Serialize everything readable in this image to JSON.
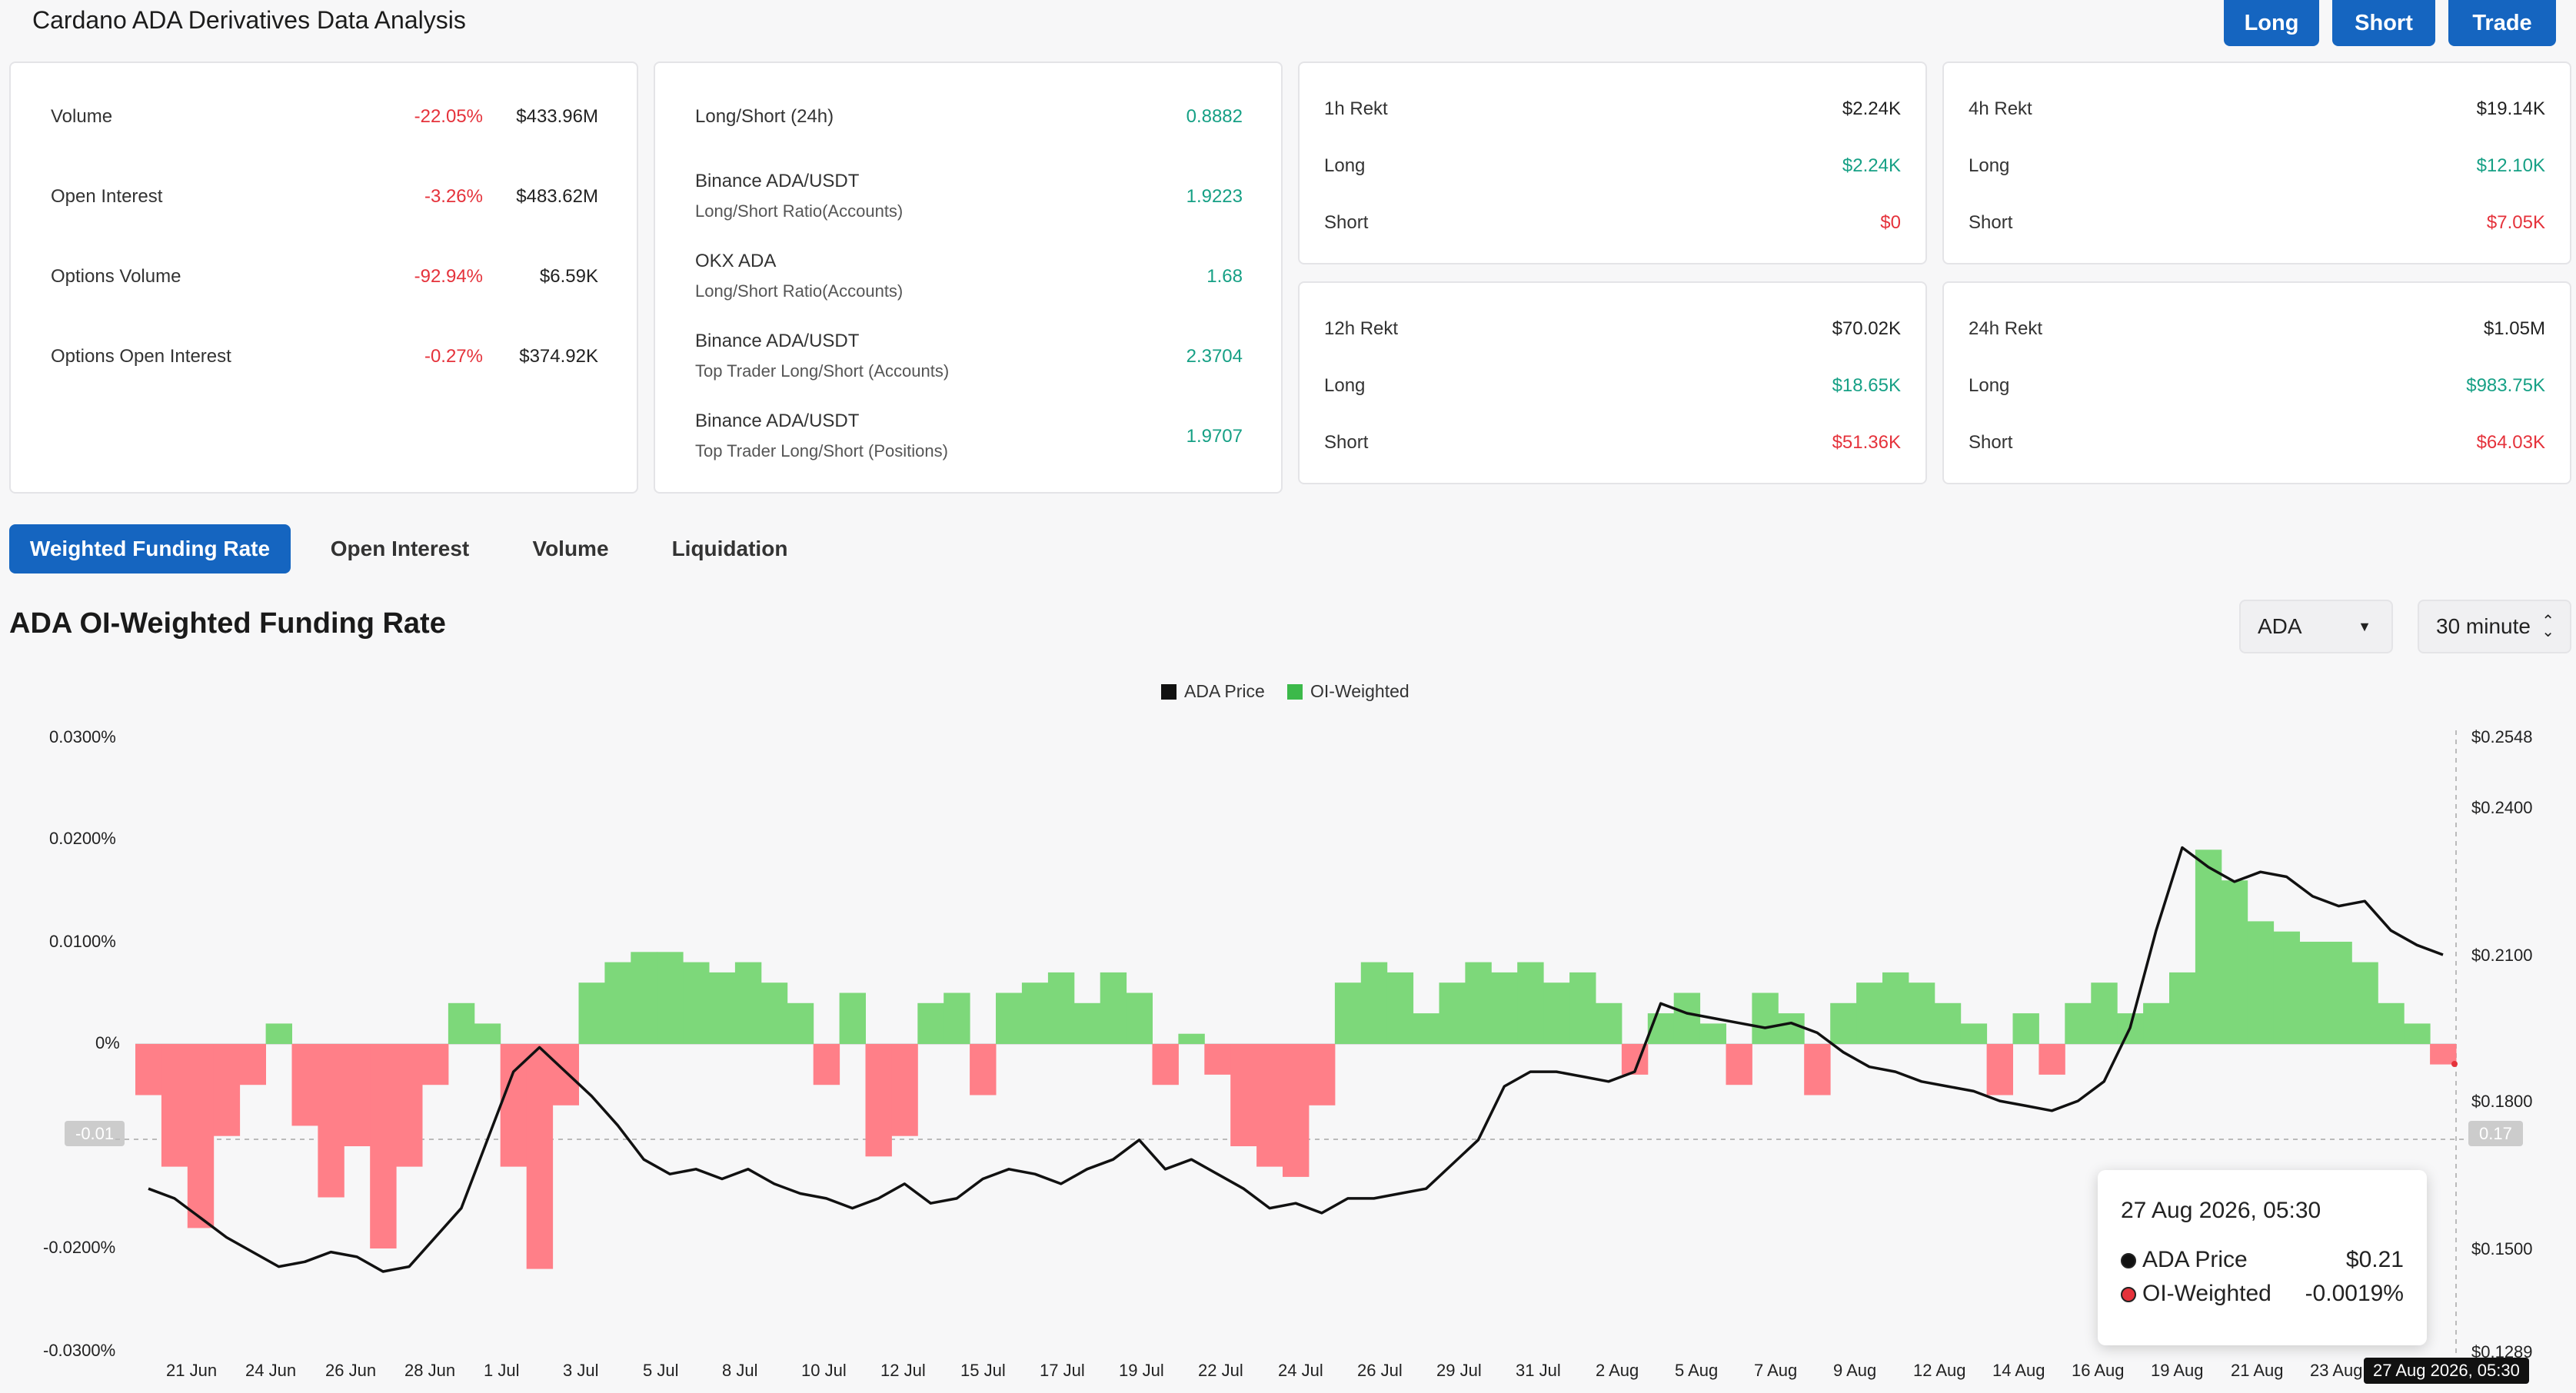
{
  "header": {
    "title": "Cardano ADA Derivatives Data Analysis",
    "buttons": {
      "long": "Long",
      "short": "Short",
      "trade": "Trade"
    }
  },
  "stats": [
    {
      "label": "Volume",
      "pct": "-22.05%",
      "value": "$433.96M"
    },
    {
      "label": "Open Interest",
      "pct": "-3.26%",
      "value": "$483.62M"
    },
    {
      "label": "Options Volume",
      "pct": "-92.94%",
      "value": "$6.59K"
    },
    {
      "label": "Options Open Interest",
      "pct": "-0.27%",
      "value": "$374.92K"
    }
  ],
  "ratios": [
    {
      "label": "Long/Short (24h)",
      "sub": "",
      "value": "0.8882"
    },
    {
      "label": "Binance ADA/USDT",
      "sub": "Long/Short Ratio(Accounts)",
      "value": "1.9223"
    },
    {
      "label": "OKX ADA",
      "sub": "Long/Short Ratio(Accounts)",
      "value": "1.68"
    },
    {
      "label": "Binance ADA/USDT",
      "sub": "Top Trader Long/Short (Accounts)",
      "value": "2.3704"
    },
    {
      "label": "Binance ADA/USDT",
      "sub": "Top Trader Long/Short (Positions)",
      "value": "1.9707"
    }
  ],
  "rekt": [
    {
      "title": "1h Rekt",
      "total": "$2.24K",
      "long_label": "Long",
      "long": "$2.24K",
      "short_label": "Short",
      "short": "$0"
    },
    {
      "title": "4h Rekt",
      "total": "$19.14K",
      "long_label": "Long",
      "long": "$12.10K",
      "short_label": "Short",
      "short": "$7.05K"
    },
    {
      "title": "12h Rekt",
      "total": "$70.02K",
      "long_label": "Long",
      "long": "$18.65K",
      "short_label": "Short",
      "short": "$51.36K"
    },
    {
      "title": "24h Rekt",
      "total": "$1.05M",
      "long_label": "Long",
      "long": "$983.75K",
      "short_label": "Short",
      "short": "$64.03K"
    }
  ],
  "tabs": [
    "Weighted Funding Rate",
    "Open Interest",
    "Volume",
    "Liquidation"
  ],
  "chart_title": "ADA OI-Weighted Funding Rate",
  "selects": {
    "coin": "ADA",
    "interval": "30 minute"
  },
  "tooltip": {
    "date": "27 Aug 2026, 05:30",
    "price_label": "ADA Price",
    "price": "$0.21",
    "oi_label": "OI-Weighted",
    "oi": "-0.0019%"
  },
  "crosshair": {
    "left_tag": "-0.01",
    "right_tag": "0.17",
    "x_tag": "27 Aug 2026, 05:30"
  },
  "colors": {
    "accent": "#1565c0",
    "positive": "#16a085",
    "negative": "#e5323b",
    "bar_pos": "#7dd87a",
    "bar_neg": "#ff7f88"
  },
  "chart_data": {
    "type": "bar+line",
    "legend": [
      "ADA Price",
      "OI-Weighted"
    ],
    "legend_position": "top-center",
    "y_left_ticks": [
      "0.0300%",
      "0.0200%",
      "0.0100%",
      "0%",
      "-0.01",
      "-0.0200%",
      "-0.0300%"
    ],
    "y_left_range": [
      -0.03,
      0.03
    ],
    "y_right_ticks": [
      "$0.2548",
      "$0.2400",
      "$0.2100",
      "$0.1800",
      "$0.1500",
      "$0.1289"
    ],
    "y_right_range": [
      0.1289,
      0.2548
    ],
    "x_ticks": [
      "21 Jun",
      "24 Jun",
      "26 Jun",
      "28 Jun",
      "1 Jul",
      "3 Jul",
      "5 Jul",
      "8 Jul",
      "10 Jul",
      "12 Jul",
      "15 Jul",
      "17 Jul",
      "19 Jul",
      "22 Jul",
      "24 Jul",
      "26 Jul",
      "29 Jul",
      "31 Jul",
      "2 Aug",
      "5 Aug",
      "7 Aug",
      "9 Aug",
      "12 Aug",
      "14 Aug",
      "16 Aug",
      "19 Aug",
      "21 Aug",
      "23 Aug"
    ],
    "series": [
      {
        "name": "OI-Weighted",
        "unit": "%",
        "values": [
          -0.005,
          -0.012,
          -0.018,
          -0.009,
          -0.004,
          0.002,
          -0.008,
          -0.015,
          -0.01,
          -0.02,
          -0.012,
          -0.004,
          0.004,
          0.002,
          -0.012,
          -0.022,
          -0.006,
          0.006,
          0.008,
          0.009,
          0.009,
          0.008,
          0.007,
          0.008,
          0.006,
          0.004,
          -0.004,
          0.005,
          -0.011,
          -0.009,
          0.004,
          0.005,
          -0.005,
          0.005,
          0.006,
          0.007,
          0.004,
          0.007,
          0.005,
          -0.004,
          0.001,
          -0.003,
          -0.01,
          -0.012,
          -0.013,
          -0.006,
          0.006,
          0.008,
          0.007,
          0.003,
          0.006,
          0.008,
          0.007,
          0.008,
          0.006,
          0.007,
          0.004,
          -0.003,
          0.003,
          0.005,
          0.002,
          -0.004,
          0.005,
          0.003,
          -0.005,
          0.004,
          0.006,
          0.007,
          0.006,
          0.004,
          0.002,
          -0.005,
          0.003,
          -0.003,
          0.004,
          0.006,
          0.003,
          0.004,
          0.007,
          0.019,
          0.016,
          0.012,
          0.011,
          0.01,
          0.01,
          0.008,
          0.004,
          0.002,
          -0.002
        ]
      },
      {
        "name": "ADA Price",
        "unit": "$",
        "values": [
          0.162,
          0.16,
          0.156,
          0.152,
          0.149,
          0.146,
          0.147,
          0.149,
          0.148,
          0.145,
          0.146,
          0.152,
          0.158,
          0.172,
          0.186,
          0.191,
          0.186,
          0.181,
          0.175,
          0.168,
          0.165,
          0.166,
          0.164,
          0.166,
          0.163,
          0.161,
          0.16,
          0.158,
          0.16,
          0.163,
          0.159,
          0.16,
          0.164,
          0.166,
          0.165,
          0.163,
          0.166,
          0.168,
          0.172,
          0.166,
          0.168,
          0.165,
          0.162,
          0.158,
          0.159,
          0.157,
          0.16,
          0.16,
          0.161,
          0.162,
          0.167,
          0.172,
          0.183,
          0.186,
          0.186,
          0.185,
          0.184,
          0.186,
          0.2,
          0.198,
          0.197,
          0.196,
          0.195,
          0.196,
          0.194,
          0.19,
          0.187,
          0.186,
          0.184,
          0.183,
          0.182,
          0.18,
          0.179,
          0.178,
          0.18,
          0.184,
          0.195,
          0.215,
          0.232,
          0.228,
          0.225,
          0.227,
          0.226,
          0.222,
          0.22,
          0.221,
          0.215,
          0.212,
          0.21
        ]
      }
    ]
  }
}
